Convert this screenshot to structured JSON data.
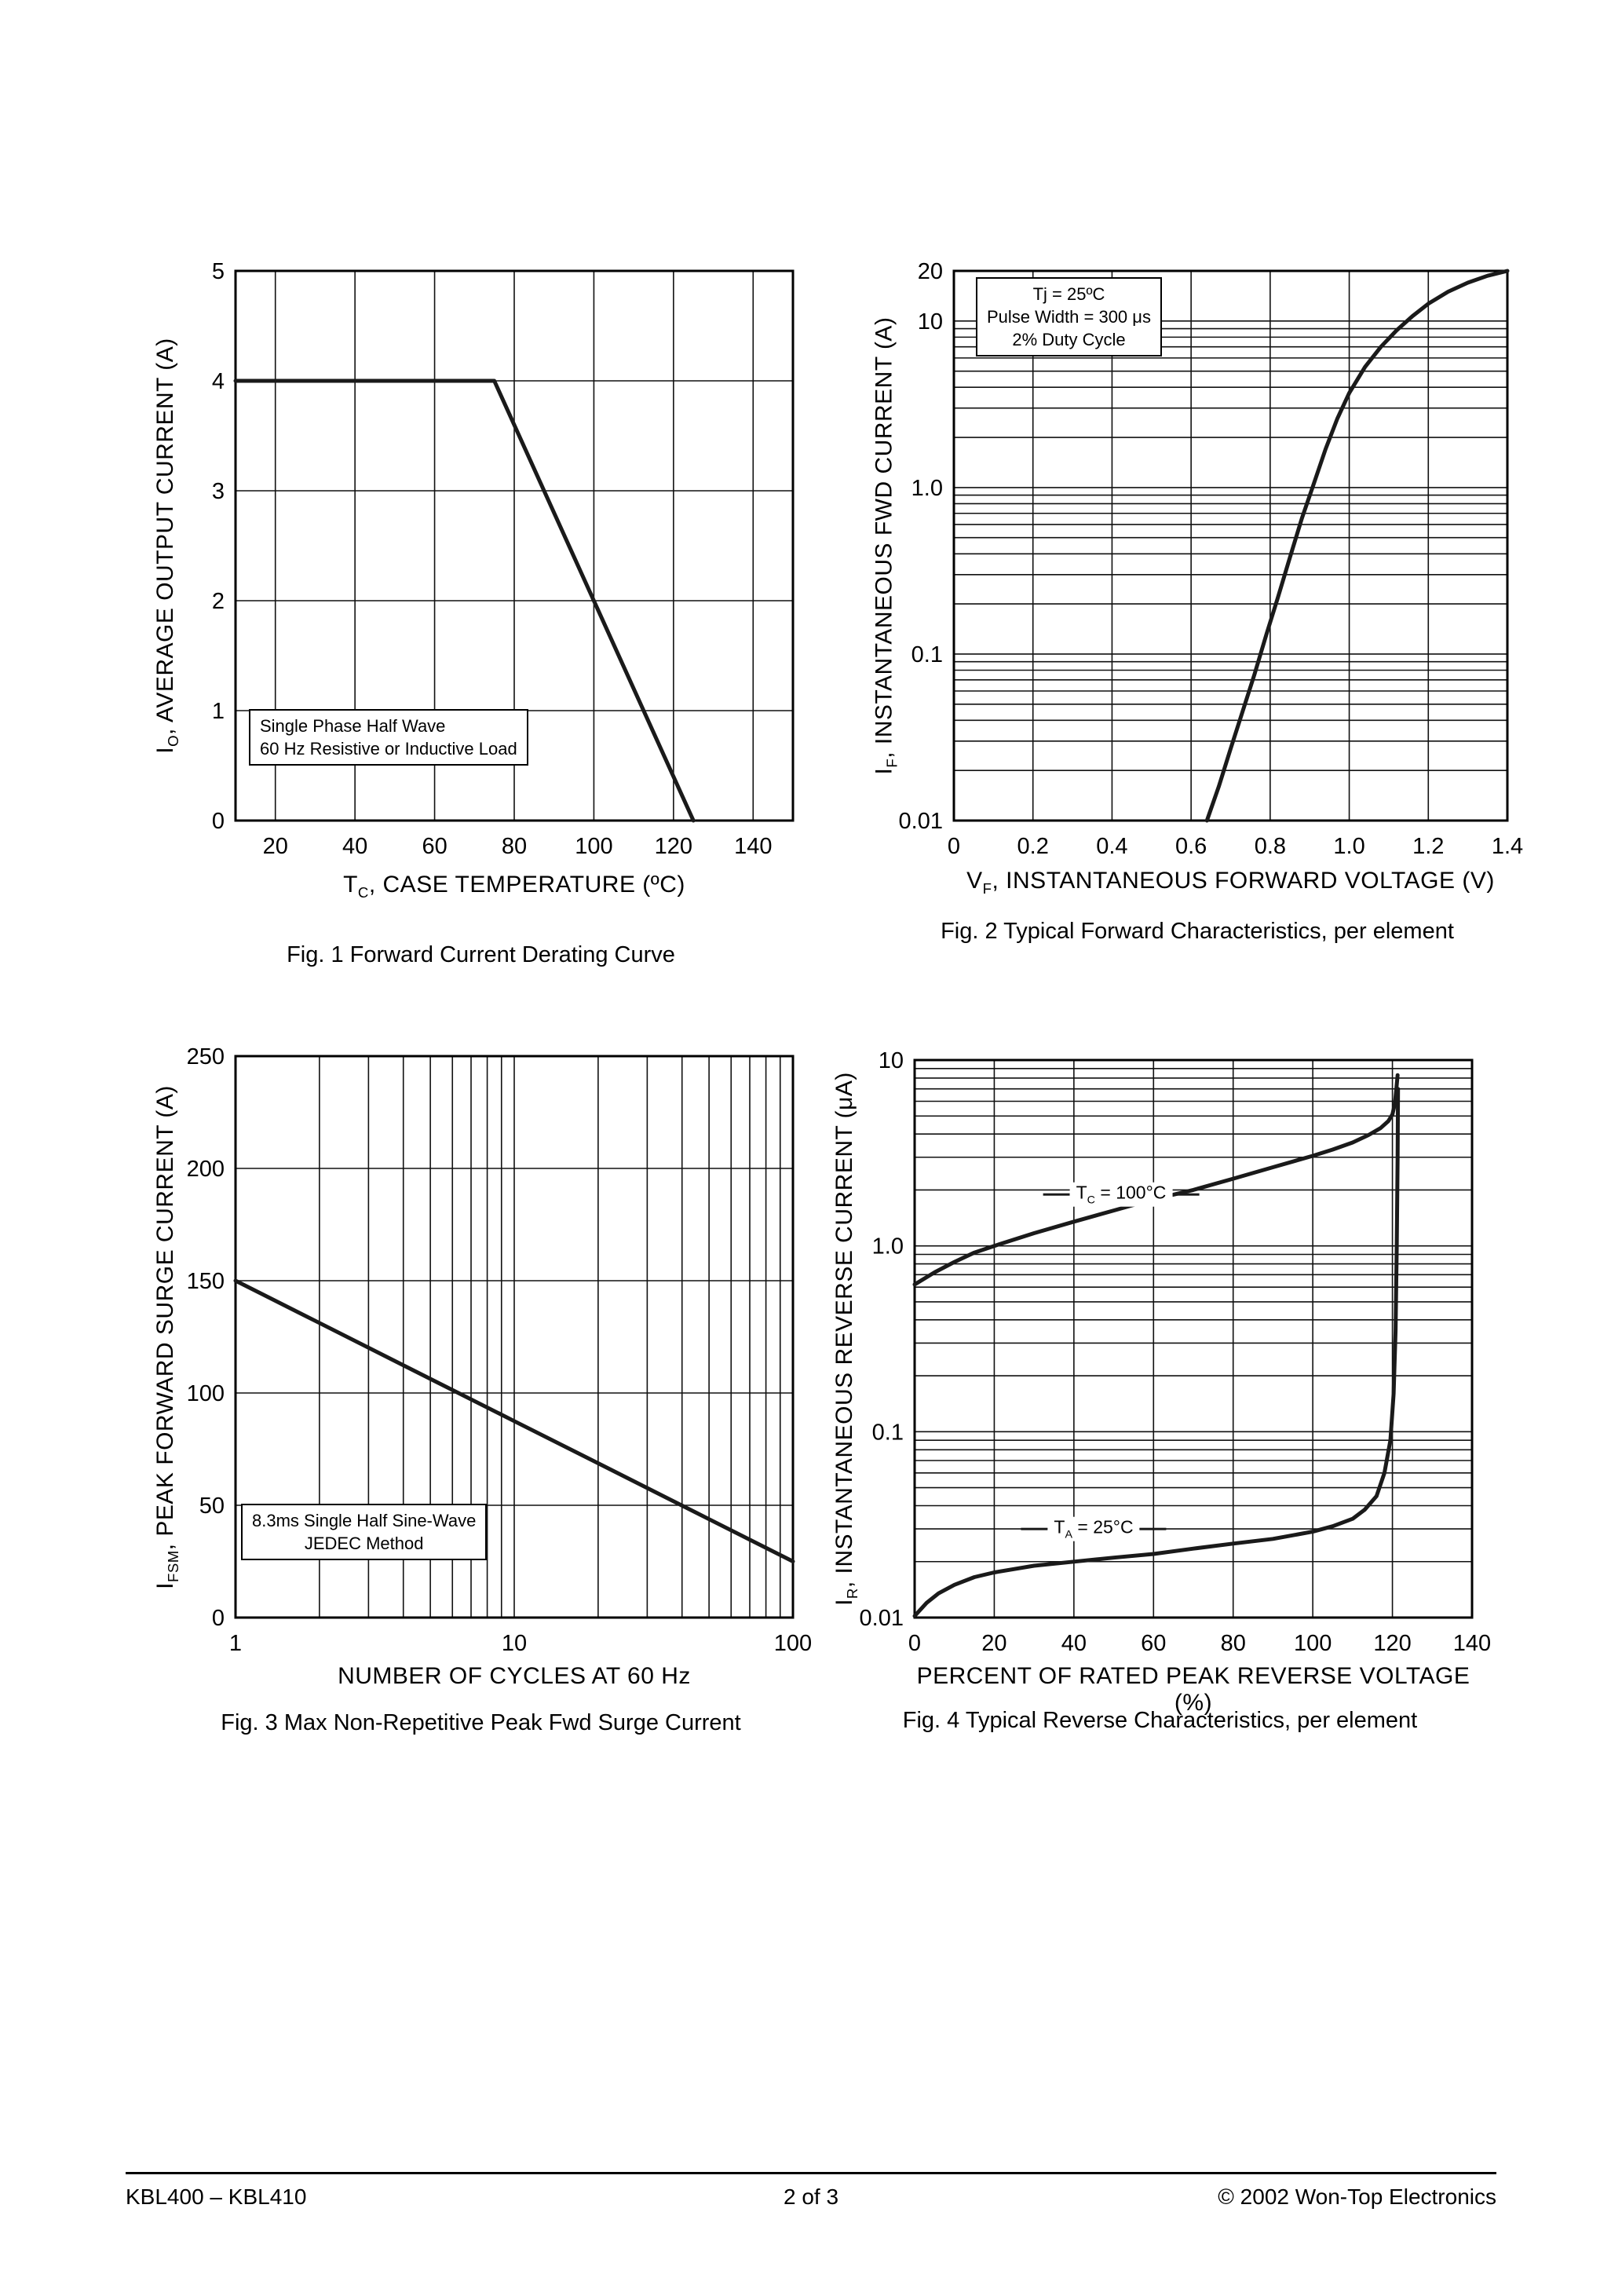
{
  "page": {
    "footer": {
      "left": "KBL400 – KBL410",
      "center": "2 of 3",
      "right": "© 2002 Won-Top Electronics"
    }
  },
  "chart_data": [
    {
      "id": "fig1",
      "type": "line",
      "caption": "Fig. 1  Forward Current Derating Curve",
      "xlabel": {
        "pre": "T",
        "sub": "C",
        "post": ", CASE TEMPERATURE (ºC)"
      },
      "ylabel": {
        "pre": "I",
        "sub": "O",
        "post": ",  AVERAGE OUTPUT CURRENT (A)"
      },
      "xscale": "linear",
      "yscale": "linear",
      "xlim": [
        10,
        150
      ],
      "ylim": [
        0,
        5
      ],
      "xticks": {
        "values": [
          20,
          40,
          60,
          80,
          100,
          120,
          140
        ],
        "labels": [
          "20",
          "40",
          "60",
          "80",
          "100",
          "120",
          "140"
        ]
      },
      "yticks": {
        "values": [
          0,
          1,
          2,
          3,
          4,
          5
        ],
        "labels": [
          "0",
          "1",
          "2",
          "3",
          "4",
          "5"
        ]
      },
      "grid": true,
      "series": [
        {
          "name": "derating-curve",
          "points": [
            [
              10,
              4
            ],
            [
              75,
              4
            ],
            [
              125,
              0
            ]
          ]
        }
      ],
      "annotation": {
        "lines": [
          "Single Phase Half Wave",
          "60 Hz Resistive or Inductive Load"
        ]
      }
    },
    {
      "id": "fig2",
      "type": "line",
      "caption": "Fig. 2  Typical Forward Characteristics, per element",
      "xlabel": {
        "pre": "V",
        "sub": "F",
        "post": ", INSTANTANEOUS FORWARD VOLTAGE (V)"
      },
      "ylabel": {
        "pre": "I",
        "sub": "F",
        "post": ",  INSTANTANEOUS FWD CURRENT (A)"
      },
      "xscale": "linear",
      "yscale": "log",
      "xlim": [
        0,
        1.4
      ],
      "ylim": [
        0.01,
        20
      ],
      "xticks": {
        "values": [
          0,
          0.2,
          0.4,
          0.6,
          0.8,
          1.0,
          1.2,
          1.4
        ],
        "labels": [
          "0",
          "0.2",
          "0.4",
          "0.6",
          "0.8",
          "1.0",
          "1.2",
          "1.4"
        ]
      },
      "yticks": {
        "values": [
          20,
          10,
          1.0,
          0.1,
          0.01
        ],
        "labels": [
          "20",
          "10",
          "1.0",
          "0.1",
          "0.01"
        ]
      },
      "grid": true,
      "series": [
        {
          "name": "forward-characteristic",
          "points": [
            [
              0.64,
              0.01
            ],
            [
              0.67,
              0.016
            ],
            [
              0.7,
              0.027
            ],
            [
              0.73,
              0.045
            ],
            [
              0.76,
              0.075
            ],
            [
              0.79,
              0.13
            ],
            [
              0.82,
              0.22
            ],
            [
              0.85,
              0.38
            ],
            [
              0.88,
              0.65
            ],
            [
              0.91,
              1.05
            ],
            [
              0.94,
              1.7
            ],
            [
              0.97,
              2.6
            ],
            [
              1.0,
              3.7
            ],
            [
              1.04,
              5.3
            ],
            [
              1.08,
              7.0
            ],
            [
              1.12,
              8.8
            ],
            [
              1.16,
              10.7
            ],
            [
              1.2,
              12.7
            ],
            [
              1.25,
              15.0
            ],
            [
              1.3,
              17.0
            ],
            [
              1.35,
              18.7
            ],
            [
              1.4,
              20
            ]
          ]
        }
      ],
      "annotation": {
        "lines": [
          "Tj = 25ºC",
          "Pulse Width = 300 μs",
          "2% Duty Cycle"
        ]
      }
    },
    {
      "id": "fig3",
      "type": "line",
      "caption": "Fig. 3  Max Non-Repetitive Peak Fwd Surge Current",
      "xlabel": {
        "pre": "NUMBER OF CYCLES AT 60 Hz",
        "sub": "",
        "post": ""
      },
      "ylabel": {
        "pre": "I",
        "sub": "FSM",
        "post": ",  PEAK FORWARD SURGE CURRENT (A)"
      },
      "xscale": "log",
      "yscale": "linear",
      "xlim": [
        1,
        100
      ],
      "ylim": [
        0,
        250
      ],
      "xticks": {
        "values": [
          1,
          10,
          100
        ],
        "labels": [
          "1",
          "10",
          "100"
        ]
      },
      "yticks": {
        "values": [
          0,
          50,
          100,
          150,
          200,
          250
        ],
        "labels": [
          "0",
          "50",
          "100",
          "150",
          "200",
          "250"
        ]
      },
      "grid": true,
      "series": [
        {
          "name": "surge-current",
          "points": [
            [
              1,
              150
            ],
            [
              2,
              131.2
            ],
            [
              5,
              106.3
            ],
            [
              10,
              87.5
            ],
            [
              20,
              68.7
            ],
            [
              50,
              43.8
            ],
            [
              100,
              25
            ]
          ]
        }
      ],
      "annotation": {
        "lines": [
          "8.3ms Single Half Sine-Wave",
          "JEDEC Method"
        ]
      }
    },
    {
      "id": "fig4",
      "type": "line",
      "caption": "Fig. 4  Typical Reverse Characteristics, per element",
      "xlabel": {
        "pre": "PERCENT OF RATED  PEAK REVERSE VOLTAGE (%)",
        "sub": "",
        "post": ""
      },
      "ylabel": {
        "pre": "I",
        "sub": "R",
        "post": ",  INSTANTANEOUS REVERSE CURRENT (μA)"
      },
      "xscale": "linear",
      "yscale": "log",
      "xlim": [
        0,
        140
      ],
      "ylim": [
        0.01,
        10
      ],
      "xticks": {
        "values": [
          0,
          20,
          40,
          60,
          80,
          100,
          120,
          140
        ],
        "labels": [
          "0",
          "20",
          "40",
          "60",
          "80",
          "100",
          "120",
          "140"
        ]
      },
      "yticks": {
        "values": [
          10,
          1.0,
          0.1,
          0.01
        ],
        "labels": [
          "10",
          "1.0",
          "0.1",
          "0.01"
        ]
      },
      "grid": true,
      "series": [
        {
          "name": "tc-100c",
          "label": {
            "pre": "T",
            "sub": "C",
            "post": " = 100°C"
          },
          "points": [
            [
              0,
              0.62
            ],
            [
              5,
              0.72
            ],
            [
              10,
              0.82
            ],
            [
              15,
              0.92
            ],
            [
              20,
              1.0
            ],
            [
              30,
              1.17
            ],
            [
              40,
              1.35
            ],
            [
              50,
              1.55
            ],
            [
              60,
              1.78
            ],
            [
              70,
              2.0
            ],
            [
              80,
              2.3
            ],
            [
              90,
              2.65
            ],
            [
              100,
              3.05
            ],
            [
              105,
              3.3
            ],
            [
              110,
              3.6
            ],
            [
              114,
              3.95
            ],
            [
              117,
              4.3
            ],
            [
              119,
              4.7
            ],
            [
              120,
              5.1
            ],
            [
              120.6,
              5.8
            ],
            [
              121,
              7.0
            ],
            [
              121.3,
              8.3
            ]
          ]
        },
        {
          "name": "ta-25c",
          "label": {
            "pre": "T",
            "sub": "A",
            "post": " = 25°C"
          },
          "points": [
            [
              0,
              0.0102
            ],
            [
              3,
              0.012
            ],
            [
              6,
              0.0135
            ],
            [
              10,
              0.015
            ],
            [
              15,
              0.0165
            ],
            [
              20,
              0.0175
            ],
            [
              30,
              0.019
            ],
            [
              40,
              0.02
            ],
            [
              50,
              0.021
            ],
            [
              60,
              0.022
            ],
            [
              70,
              0.0235
            ],
            [
              80,
              0.025
            ],
            [
              90,
              0.0265
            ],
            [
              100,
              0.029
            ],
            [
              105,
              0.031
            ],
            [
              110,
              0.034
            ],
            [
              113,
              0.038
            ],
            [
              116,
              0.045
            ],
            [
              118,
              0.06
            ],
            [
              119.5,
              0.09
            ],
            [
              120.3,
              0.16
            ],
            [
              120.8,
              0.35
            ],
            [
              121.1,
              1.0
            ],
            [
              121.3,
              3.0
            ],
            [
              121.4,
              7.0
            ]
          ]
        }
      ]
    }
  ]
}
